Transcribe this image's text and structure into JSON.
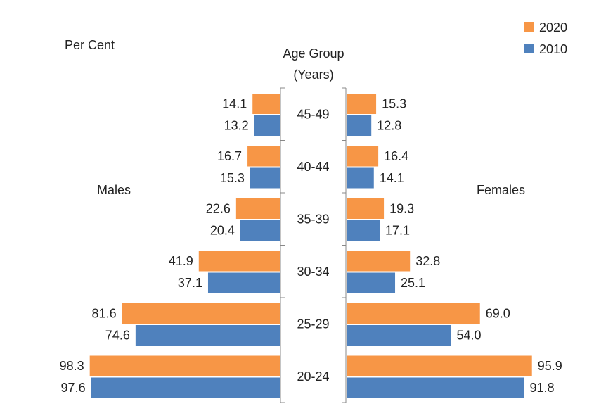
{
  "chart_data": {
    "type": "bar",
    "orientation": "horizontal-butterfly",
    "unit_label": "Per Cent",
    "axis_title": [
      "Age Group",
      "(Years)"
    ],
    "left_label": "Males",
    "right_label": "Females",
    "categories": [
      "45-49",
      "40-44",
      "35-39",
      "30-34",
      "25-29",
      "20-24"
    ],
    "series": [
      {
        "name": "2020",
        "color": "#F79646",
        "males": [
          "14.1",
          "16.7",
          "22.6",
          "41.9",
          "81.6",
          "98.3"
        ],
        "females": [
          "15.3",
          "16.4",
          "19.3",
          "32.8",
          "69.0",
          "95.9"
        ]
      },
      {
        "name": "2010",
        "color": "#4F81BD",
        "males": [
          "13.2",
          "15.3",
          "20.4",
          "37.1",
          "74.6",
          "97.6"
        ],
        "females": [
          "12.8",
          "14.1",
          "17.1",
          "25.1",
          "54.0",
          "91.8"
        ]
      }
    ],
    "legend_position": "top-right",
    "grid": false
  }
}
